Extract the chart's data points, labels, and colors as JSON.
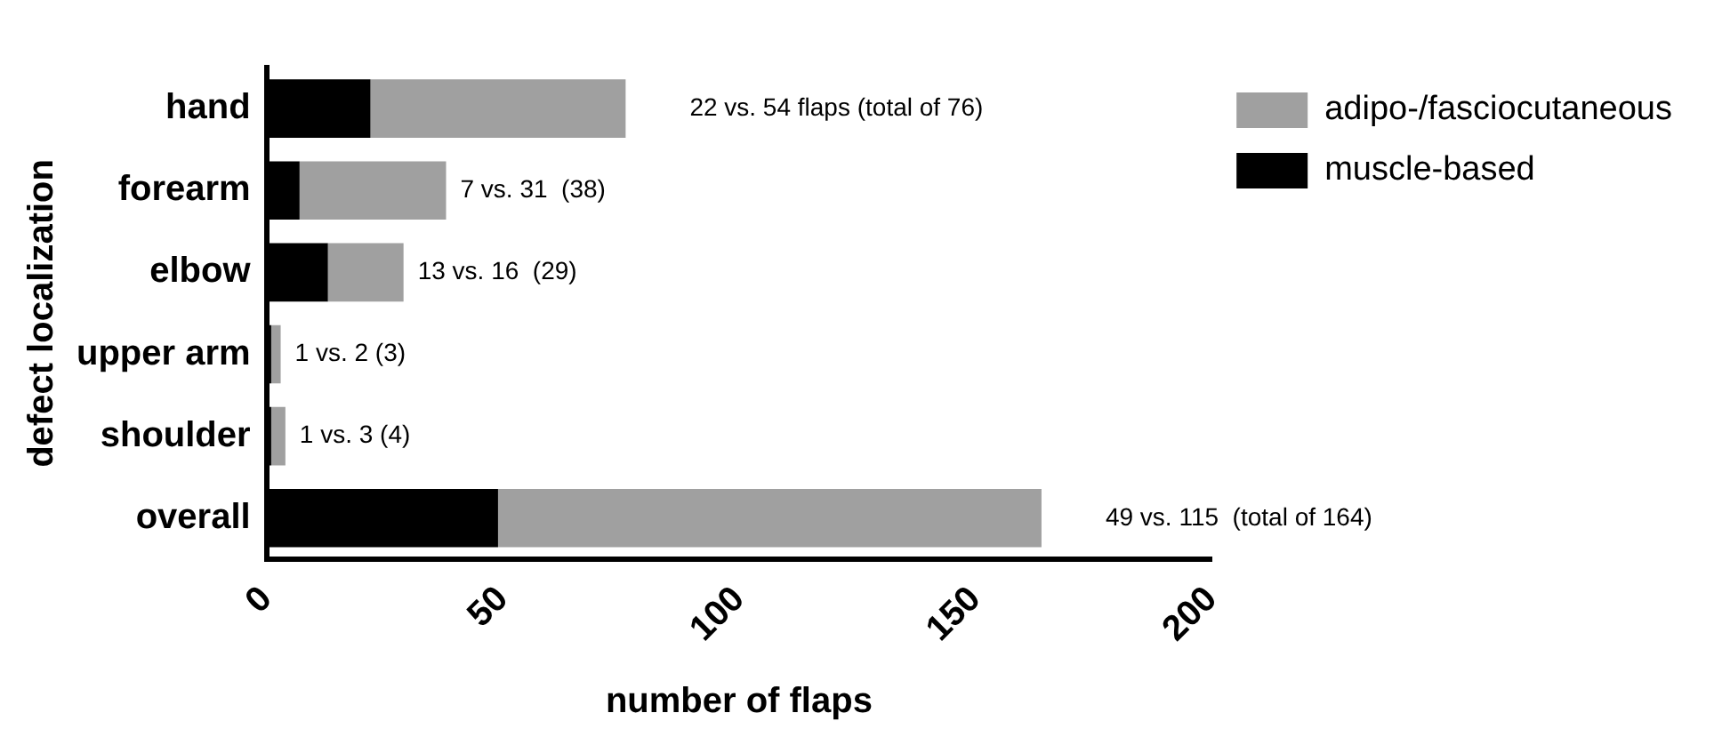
{
  "chart_data": {
    "type": "bar",
    "orientation": "horizontal",
    "stacked": true,
    "xlabel": "number of flaps",
    "ylabel": "defect localization",
    "categories": [
      "hand",
      "forearm",
      "elbow",
      "upper arm",
      "shoulder",
      "overall"
    ],
    "series": [
      {
        "name": "muscle-based",
        "color": "#000000",
        "values": [
          22,
          7,
          13,
          1,
          1,
          49
        ]
      },
      {
        "name": "adipo-/fasciocutaneous",
        "color": "#a0a0a0",
        "values": [
          54,
          31,
          16,
          2,
          3,
          115
        ]
      }
    ],
    "xlim": [
      0,
      200
    ],
    "xticks": [
      0,
      50,
      100,
      150,
      200
    ],
    "grid": false,
    "legend": "top right",
    "annotations": [
      {
        "text": "22 vs. 54 flaps (total of 76)",
        "x": 76,
        "y": "hand"
      },
      {
        "text": "7 vs. 31  (38)",
        "x": 38,
        "y": "forearm"
      },
      {
        "text": "13 vs. 16  (29)",
        "x": 29,
        "y": "elbow"
      },
      {
        "text": "1 vs. 2 (3)",
        "x": 3,
        "y": "upper arm"
      },
      {
        "text": "1 vs. 3 (4)",
        "x": 4,
        "y": "shoulder"
      },
      {
        "text": "49 vs. 115  (total of 164)",
        "x": 164,
        "y": "overall"
      }
    ]
  }
}
